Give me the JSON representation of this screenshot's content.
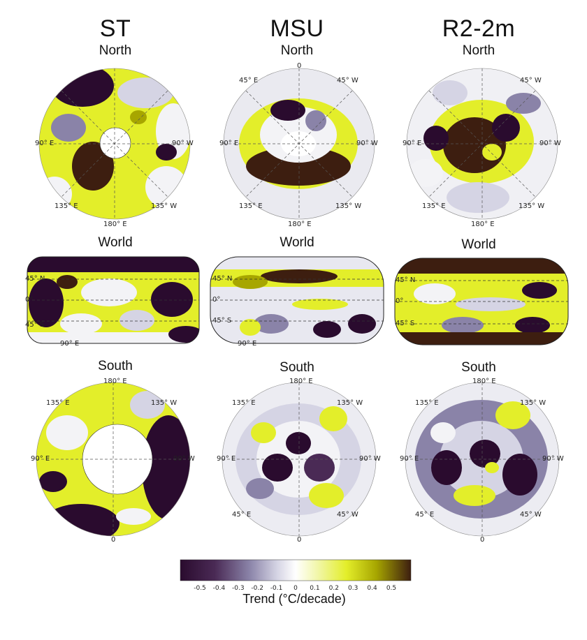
{
  "columns": [
    {
      "key": "st",
      "title": "ST"
    },
    {
      "key": "msu",
      "title": "MSU"
    },
    {
      "key": "r2",
      "title": "R2-2m"
    }
  ],
  "rows": {
    "north": "North",
    "world": "World",
    "south": "South"
  },
  "north_labels": {
    "top": "0",
    "left": "90° E",
    "right": "90° W",
    "bl": "135° E",
    "br": "135° W",
    "tl": "45° E",
    "tr": "45° W",
    "bottom": "180° E"
  },
  "south_labels": {
    "top": "180° E",
    "left": "90° E",
    "right": "90° W",
    "tl": "135° E",
    "tr": "135° W",
    "bl": "45° E",
    "br": "45° W",
    "bottom": "0"
  },
  "world_labels": {
    "lat_top": "45° N",
    "lat_mid": "0°",
    "lat_bot": "45° S",
    "bottom_lon": "90° E"
  },
  "colorbar": {
    "label": "Trend (°C/decade)",
    "ticks": [
      "-0.5",
      "-0.4",
      "-0.3",
      "-0.2",
      "-0.1",
      "0",
      "0.1",
      "0.2",
      "0.3",
      "0.4",
      "0.5"
    ],
    "colors": [
      "#2a0b2e",
      "#4a2a55",
      "#7a6f9a",
      "#b3b1cc",
      "#e8e8f0",
      "#ffffff",
      "#f4f7c0",
      "#e6f05a",
      "#d0d320",
      "#9a8a10",
      "#4a2f05"
    ]
  },
  "palette": {
    "dark": "#2a0b2e",
    "purple": "#8a83a8",
    "lav": "#d5d4e4",
    "white": "#f3f3f6",
    "yellow": "#e3ee2a",
    "olive": "#a7a600",
    "brown": "#3d1e10"
  }
}
